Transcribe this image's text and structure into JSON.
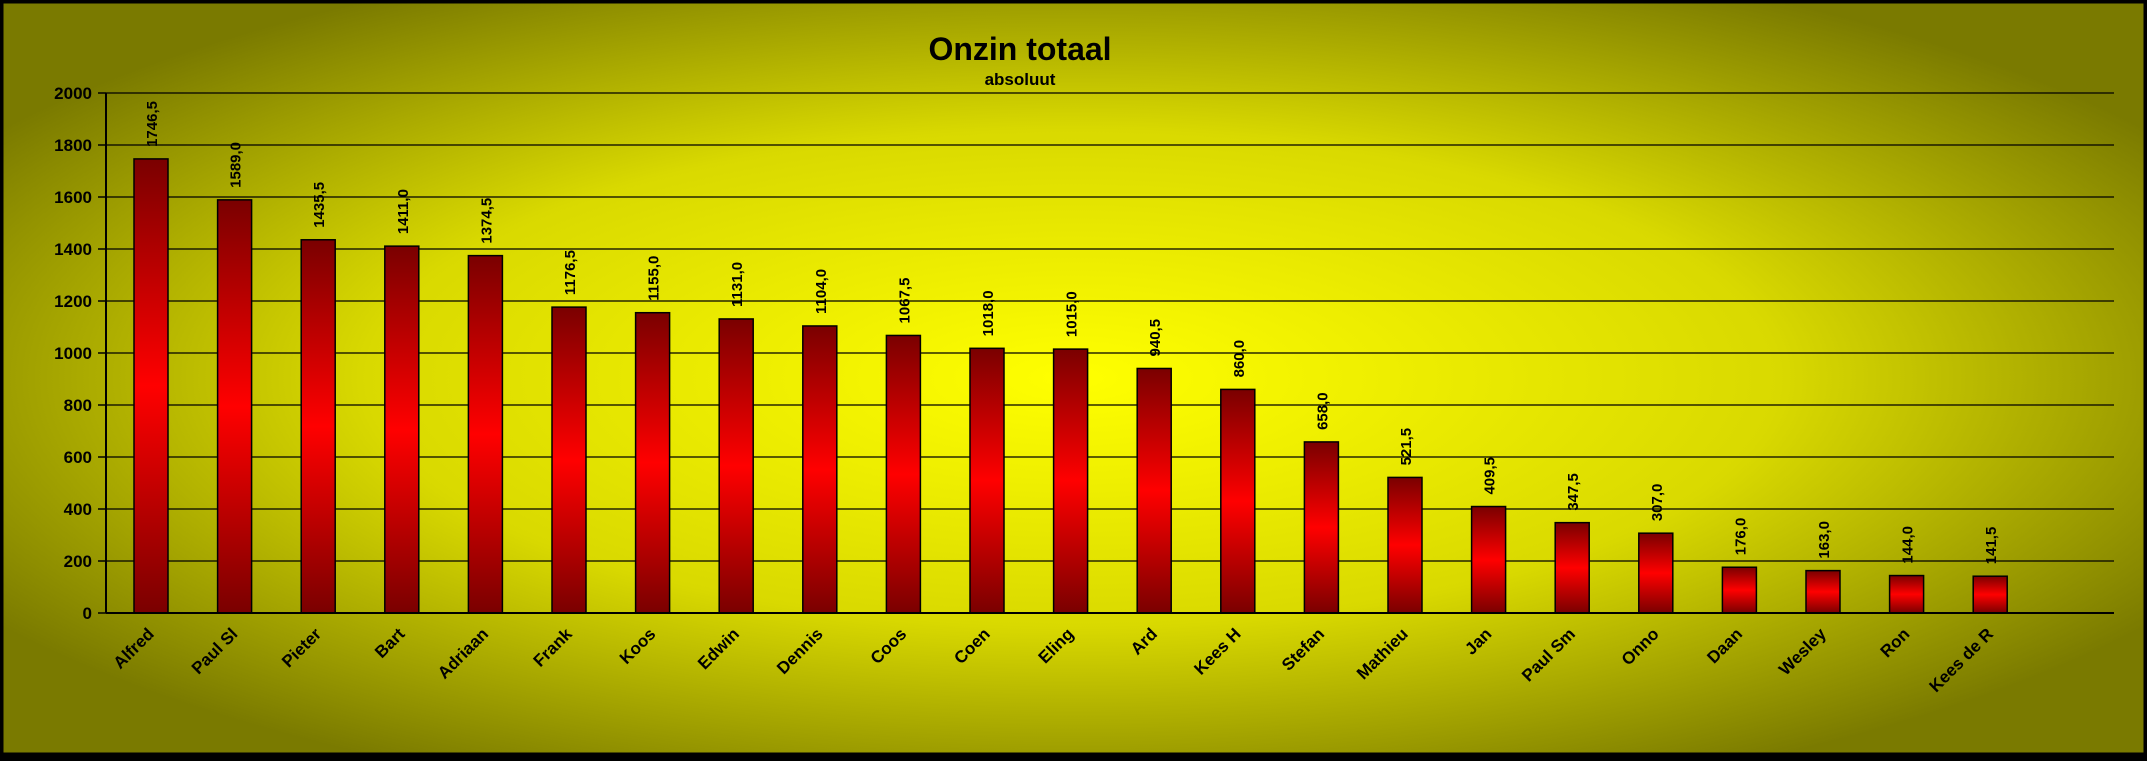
{
  "colors": {
    "background_center": "#ffff00",
    "background_edge": "#7a7a00",
    "bar_light": "#ff0000",
    "bar_dark": "#7a0000",
    "frame": "#000000"
  },
  "chart_data": {
    "type": "bar",
    "title": "Onzin totaal",
    "subtitle": "absoluut",
    "xlabel": "",
    "ylabel": "",
    "ylim": [
      0,
      2000
    ],
    "yticks": [
      "0",
      "200",
      "400",
      "600",
      "800",
      "1000",
      "1200",
      "1400",
      "1600",
      "1800",
      "2000"
    ],
    "grid": true,
    "legend": "none",
    "categories": [
      "Alfred",
      "Paul Sl",
      "Pieter",
      "Bart",
      "Adriaan",
      "Frank",
      "Koos",
      "Edwin",
      "Dennis",
      "Coos",
      "Coen",
      "Eling",
      "Ard",
      "Kees H",
      "Stefan",
      "Mathieu",
      "Jan",
      "Paul Sm",
      "Onno",
      "Daan",
      "Wesley",
      "Ron",
      "Kees de R"
    ],
    "values": [
      1746.5,
      1589.0,
      1435.5,
      1411.0,
      1374.5,
      1176.5,
      1155.0,
      1131.0,
      1104.0,
      1067.5,
      1018.0,
      1015.0,
      940.5,
      860.0,
      658.0,
      521.5,
      409.5,
      347.5,
      307.0,
      176.0,
      163.0,
      144.0,
      141.5
    ],
    "data_labels": [
      "1746,5",
      "1589,0",
      "1435,5",
      "1411,0",
      "1374,5",
      "1176,5",
      "1155,0",
      "1131,0",
      "1104,0",
      "1067,5",
      "1018,0",
      "1015,0",
      "940,5",
      "860,0",
      "658,0",
      "521,5",
      "409,5",
      "347,5",
      "307,0",
      "176,0",
      "163,0",
      "144,0",
      "141,5"
    ]
  }
}
